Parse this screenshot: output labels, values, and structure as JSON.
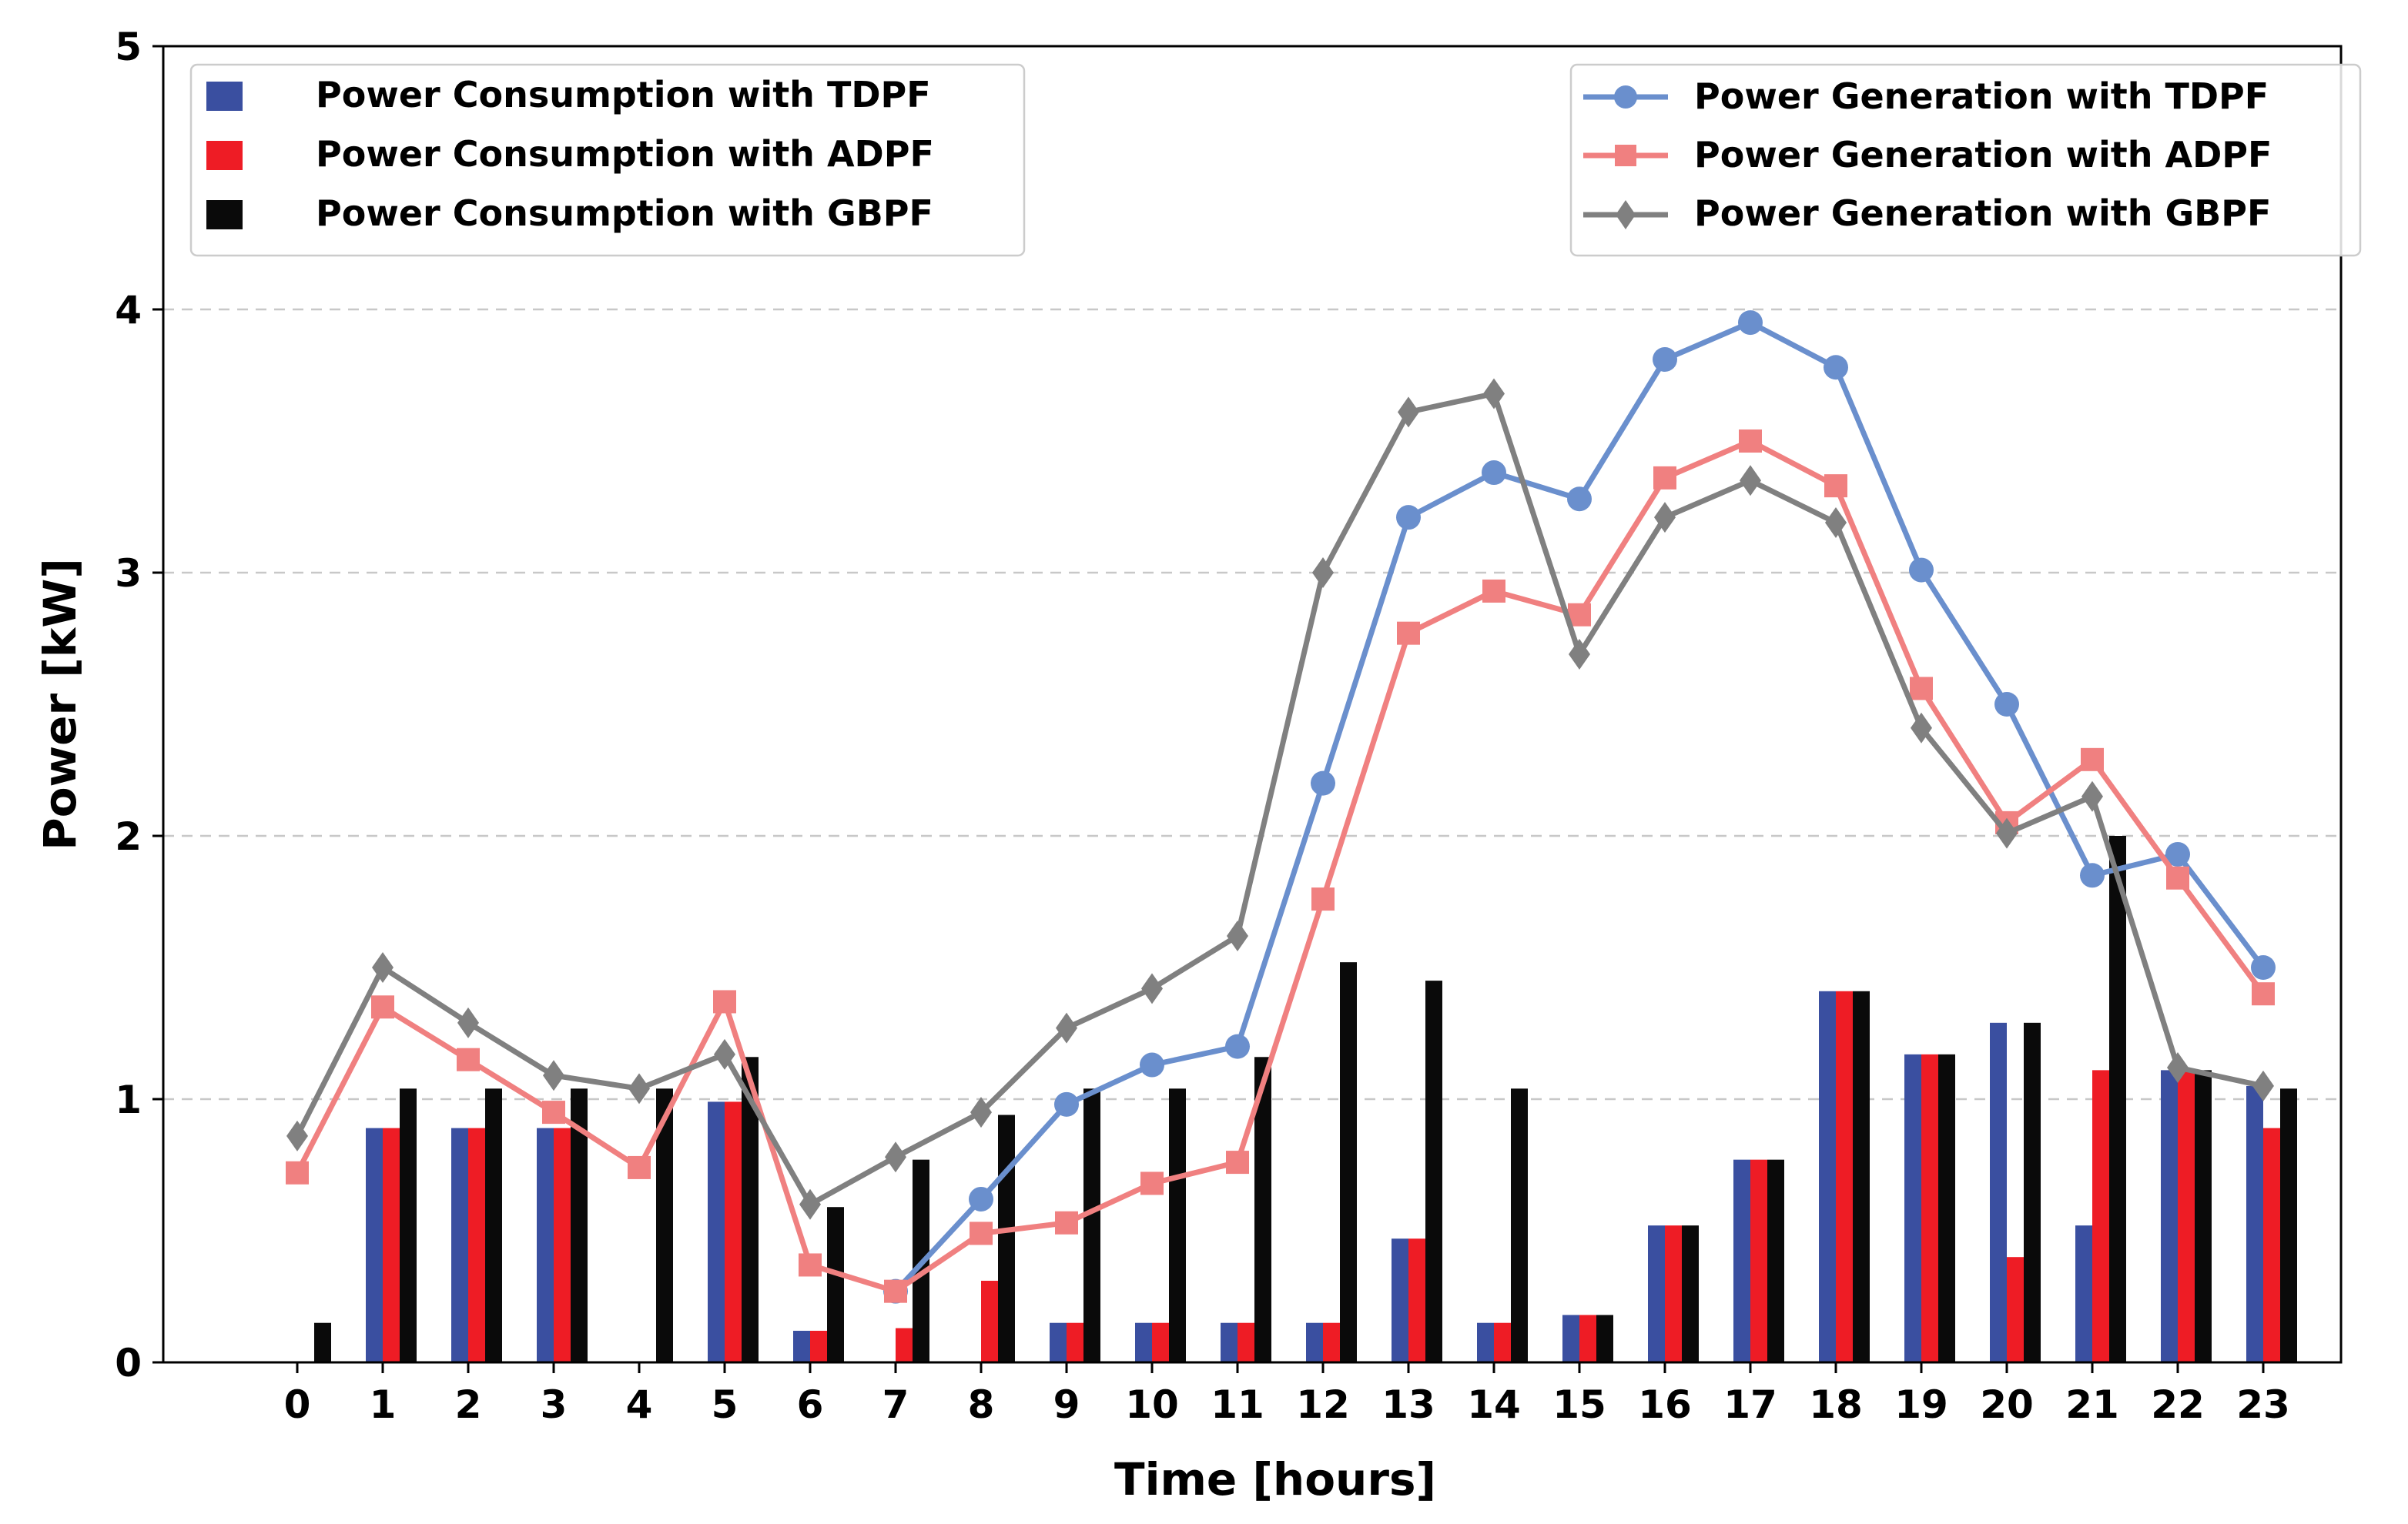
{
  "chart_data": {
    "type": "bar+line",
    "title": "",
    "xlabel": "Time [hours]",
    "ylabel": "Power [kW]",
    "ylim": [
      0,
      5
    ],
    "yticks": [
      0,
      1,
      2,
      3,
      4,
      5
    ],
    "grid": "horizontal dashed at 1, 2, 3, 4",
    "categories": [
      "0",
      "1",
      "2",
      "3",
      "4",
      "5",
      "6",
      "7",
      "8",
      "9",
      "10",
      "11",
      "12",
      "13",
      "14",
      "15",
      "16",
      "17",
      "18",
      "19",
      "20",
      "21",
      "22",
      "23"
    ],
    "bar_series": [
      {
        "name": "Power Consumption with TDPF",
        "color": "#3a4fa0",
        "values": [
          0,
          0.89,
          0.89,
          0.89,
          0,
          0.99,
          0.12,
          0,
          0,
          0.15,
          0.15,
          0.15,
          0.15,
          0.47,
          0.15,
          0.18,
          0.52,
          0.77,
          1.41,
          1.17,
          1.29,
          0.52,
          1.11,
          1.05
        ]
      },
      {
        "name": "Power Consumption with ADPF",
        "color": "#ee1c25",
        "values": [
          0,
          0.89,
          0.89,
          0.89,
          0,
          0.99,
          0.12,
          0.13,
          0.31,
          0.15,
          0.15,
          0.15,
          0.15,
          0.47,
          0.15,
          0.18,
          0.52,
          0.77,
          1.41,
          1.17,
          0.4,
          1.11,
          1.11,
          0.89
        ]
      },
      {
        "name": "Power Consumption with GBPF",
        "color": "#0a0a0a",
        "values": [
          0.15,
          1.04,
          1.04,
          1.04,
          1.04,
          1.16,
          0.59,
          0.77,
          0.94,
          1.04,
          1.04,
          1.16,
          1.52,
          1.45,
          1.04,
          0.18,
          0.52,
          0.77,
          1.41,
          1.17,
          1.29,
          2.0,
          1.11,
          1.04
        ]
      }
    ],
    "line_series": [
      {
        "name": "Power Generation with TDPF",
        "color": "#6a8fcd",
        "marker": "circle",
        "values": [
          null,
          null,
          null,
          null,
          null,
          null,
          null,
          0.27,
          0.62,
          0.98,
          1.13,
          1.2,
          2.2,
          3.21,
          3.38,
          3.28,
          3.81,
          3.95,
          3.78,
          3.01,
          2.5,
          1.85,
          1.93,
          1.5
        ]
      },
      {
        "name": "Power Generation with ADPF",
        "color": "#f08080",
        "marker": "square",
        "values": [
          0.72,
          1.35,
          1.15,
          0.95,
          0.74,
          1.37,
          0.37,
          0.27,
          0.49,
          0.53,
          0.68,
          0.76,
          1.76,
          2.77,
          2.93,
          2.84,
          3.36,
          3.5,
          3.33,
          2.56,
          2.05,
          2.29,
          1.84,
          1.4
        ]
      },
      {
        "name": "Power Generation with GBPF",
        "color": "#808080",
        "marker": "diamond",
        "values": [
          0.86,
          1.5,
          1.29,
          1.09,
          1.04,
          1.17,
          0.6,
          0.78,
          0.95,
          1.27,
          1.42,
          1.62,
          3.0,
          3.61,
          3.68,
          2.69,
          3.21,
          3.35,
          3.19,
          2.41,
          2.01,
          2.15,
          1.12,
          1.05
        ]
      }
    ],
    "legends": {
      "bars": {
        "position": "top-left"
      },
      "lines": {
        "position": "top-right"
      }
    }
  }
}
